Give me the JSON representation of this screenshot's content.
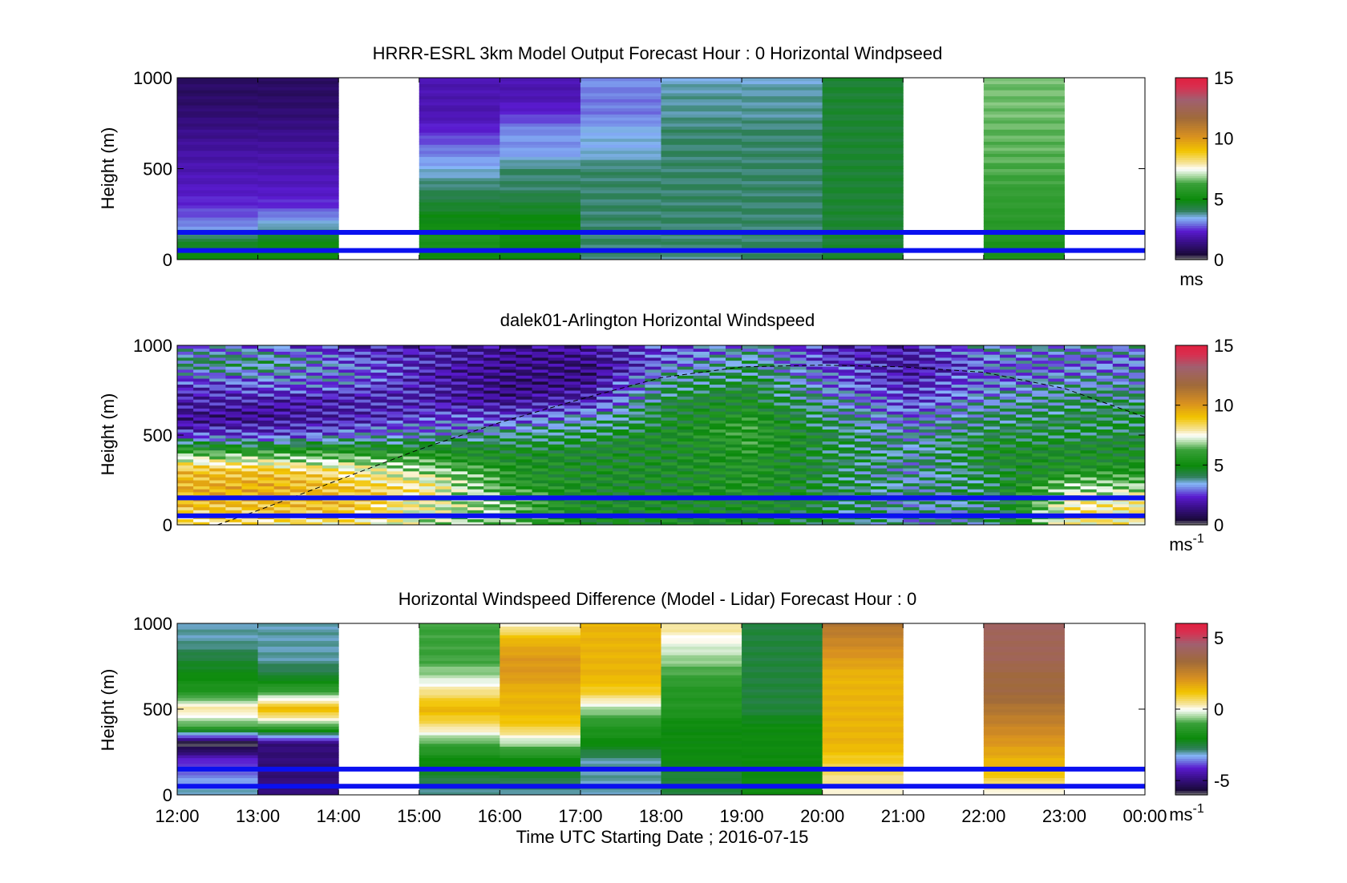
{
  "figure": {
    "xlabel": "Time UTC  Starting Date ; 2016-07-15",
    "x_ticks": [
      "12:00",
      "13:00",
      "14:00",
      "15:00",
      "16:00",
      "17:00",
      "18:00",
      "19:00",
      "20:00",
      "21:00",
      "22:00",
      "23:00",
      "00:00"
    ]
  },
  "chart_data": [
    {
      "type": "heatmap",
      "title": "HRRR-ESRL 3km Model Output   Forecast Hour : 0 Horizontal Windpseed",
      "ylabel": "Height (m)",
      "xlim": [
        12,
        24
      ],
      "ylim": [
        0,
        1000
      ],
      "y_ticks": [
        "0",
        "500",
        "1000"
      ],
      "colorbar": {
        "range": [
          0,
          15
        ],
        "ticks": [
          "0",
          "5",
          "10",
          "15"
        ],
        "unit_label": "ms",
        "unit_sup": ""
      },
      "reference_lines_height_m": [
        50,
        150
      ],
      "heights_m": [
        0,
        100,
        200,
        300,
        400,
        500,
        600,
        700,
        800,
        900,
        1000
      ],
      "columns": [
        {
          "hour": 12,
          "values": [
            5,
            4.5,
            3,
            2.5,
            2.2,
            2,
            1.8,
            1.5,
            1.2,
            1,
            1
          ]
        },
        {
          "hour": 13,
          "values": [
            5,
            5,
            3.5,
            2.5,
            2.2,
            2,
            1.8,
            1.5,
            1.2,
            1,
            1
          ]
        },
        {
          "hour": 14,
          "values": null
        },
        {
          "hour": 15,
          "values": [
            5,
            5.5,
            5,
            4.5,
            4,
            3.5,
            3,
            2.5,
            2,
            2,
            2
          ]
        },
        {
          "hour": 16,
          "values": [
            5,
            5,
            5,
            4.5,
            4,
            4,
            3.2,
            3.2,
            2.5,
            2,
            2
          ]
        },
        {
          "hour": 17,
          "values": [
            4,
            4,
            4,
            4,
            4,
            4,
            3.5,
            3.5,
            3,
            3,
            3.2
          ]
        },
        {
          "hour": 18,
          "values": [
            3.8,
            4,
            4,
            4,
            4,
            4,
            4,
            4,
            3.8,
            3.8,
            3.6
          ]
        },
        {
          "hour": 19,
          "values": [
            4,
            4,
            4,
            4,
            4,
            4,
            4,
            4,
            3.8,
            3.8,
            3.6
          ]
        },
        {
          "hour": 20,
          "values": [
            4.5,
            4.5,
            4.5,
            4.5,
            4.5,
            4.5,
            4.5,
            4.5,
            4.5,
            4.5,
            4.5
          ]
        },
        {
          "hour": 21,
          "values": null
        },
        {
          "hour": 22,
          "values": [
            5.5,
            5.5,
            5.8,
            6,
            6.2,
            6.4,
            6.5,
            6.5,
            6.6,
            6.6,
            6.6
          ]
        },
        {
          "hour": 23,
          "values": null
        }
      ]
    },
    {
      "type": "heatmap",
      "title": "dalek01-Arlington  Horizontal Windspeed",
      "ylabel": "Height (m)",
      "xlim": [
        12,
        24
      ],
      "ylim": [
        0,
        1000
      ],
      "y_ticks": [
        "0",
        "500",
        "1000"
      ],
      "colorbar": {
        "range": [
          0,
          15
        ],
        "ticks": [
          "0",
          "5",
          "10",
          "15"
        ],
        "unit_label": "ms",
        "unit_sup": "-1"
      },
      "reference_lines_height_m": [
        50,
        150
      ],
      "annotation": "dashed boundary-layer height curve",
      "bl_curve": {
        "x": [
          12.5,
          13,
          14,
          15,
          16,
          17,
          18,
          19,
          20,
          21,
          22,
          23,
          24
        ],
        "y": [
          0,
          80,
          250,
          420,
          570,
          700,
          820,
          880,
          890,
          880,
          850,
          760,
          600
        ]
      },
      "profiles": [
        {
          "hour": 12,
          "values": [
            8,
            9,
            9.5,
            9,
            6.5,
            2.5,
            1.5,
            2,
            2.5,
            4,
            3
          ]
        },
        {
          "hour": 13,
          "values": [
            8,
            9,
            9.5,
            9,
            6,
            2.5,
            1.5,
            2,
            3,
            4,
            3
          ]
        },
        {
          "hour": 14,
          "values": [
            8,
            9,
            9,
            8,
            6,
            3,
            2,
            2,
            3,
            3,
            2
          ]
        },
        {
          "hour": 15,
          "values": [
            7,
            7.5,
            8,
            7,
            5.5,
            3.5,
            2.5,
            2,
            2,
            2,
            2
          ]
        },
        {
          "hour": 16,
          "values": [
            6.5,
            6.5,
            6,
            5.5,
            5,
            4,
            2.5,
            1.5,
            1.2,
            1.5,
            1.5
          ]
        },
        {
          "hour": 17,
          "values": [
            5,
            5,
            5,
            5,
            4.8,
            4.5,
            3.5,
            2,
            1.5,
            1.2,
            2
          ]
        },
        {
          "hour": 18,
          "values": [
            5,
            5,
            5,
            5,
            5,
            5,
            4.8,
            4.5,
            4,
            3,
            2.5
          ]
        },
        {
          "hour": 19,
          "values": [
            5,
            5,
            5.5,
            5.5,
            5.5,
            6,
            5.5,
            5,
            4.5,
            4,
            3.5
          ]
        },
        {
          "hour": 20,
          "values": [
            4.5,
            4.5,
            4.5,
            4.5,
            4.5,
            4.5,
            4,
            3.5,
            3,
            2.5,
            2
          ]
        },
        {
          "hour": 21,
          "values": [
            3.5,
            3.5,
            3.8,
            3.5,
            3.8,
            3.5,
            3,
            2.5,
            2,
            1.8,
            2
          ]
        },
        {
          "hour": 22,
          "values": [
            4,
            4,
            4.5,
            4.5,
            5,
            4.5,
            4,
            3.5,
            3,
            3,
            3.5
          ]
        },
        {
          "hour": 23,
          "values": [
            8,
            8,
            7,
            5.5,
            5,
            4.5,
            4.5,
            4,
            3.5,
            3,
            3.5
          ]
        }
      ]
    },
    {
      "type": "heatmap",
      "title": "Horizontal Windspeed Difference (Model - Lidar) Forecast Hour : 0",
      "ylabel": "Height (m)",
      "xlim": [
        12,
        24
      ],
      "ylim": [
        0,
        1000
      ],
      "y_ticks": [
        "0",
        "500",
        "1000"
      ],
      "colorbar": {
        "range": [
          -6,
          6
        ],
        "ticks": [
          "-5",
          "0",
          "5"
        ],
        "unit_label": "ms",
        "unit_sup": "-1"
      },
      "reference_lines_height_m": [
        50,
        150
      ],
      "heights_m": [
        0,
        100,
        200,
        300,
        400,
        500,
        600,
        700,
        800,
        900,
        1000
      ],
      "columns": [
        {
          "hour": 12,
          "values": [
            -3,
            -3.5,
            -4,
            -6,
            -1,
            0.5,
            -1.5,
            -2,
            -2.5,
            -3,
            -3
          ]
        },
        {
          "hour": 13,
          "values": [
            -5,
            -5,
            -5,
            -5,
            -1,
            1.5,
            -1,
            -2.5,
            -3,
            -3,
            -3
          ]
        },
        {
          "hour": 14,
          "values": null
        },
        {
          "hour": 15,
          "values": [
            -3,
            -2.5,
            -2,
            -1,
            0.5,
            1.5,
            0.5,
            -0.5,
            -1,
            -1,
            -1
          ]
        },
        {
          "hour": 16,
          "values": [
            -3,
            -2.5,
            -2,
            -0.5,
            1,
            1.5,
            1.5,
            2,
            2,
            1.5,
            0
          ]
        },
        {
          "hour": 17,
          "values": [
            -3,
            -3,
            -3,
            -2,
            -1.5,
            -0.5,
            1,
            1.5,
            1.5,
            1.5,
            1.5
          ]
        },
        {
          "hour": 18,
          "values": [
            -2.5,
            -2.5,
            -2,
            -2,
            -2,
            -1.5,
            -1.5,
            -1,
            -0.5,
            0,
            0.5
          ]
        },
        {
          "hour": 19,
          "values": [
            -2,
            -2,
            -2,
            -2,
            -2,
            -2.5,
            -2.5,
            -2.5,
            -2.5,
            -2.5,
            -2.5
          ]
        },
        {
          "hour": 20,
          "values": [
            0,
            0.5,
            1,
            1.5,
            1.5,
            1.5,
            1.5,
            1.5,
            2,
            2.5,
            3
          ]
        },
        {
          "hour": 21,
          "values": null
        },
        {
          "hour": 22,
          "values": [
            0,
            1,
            1.5,
            2,
            2.5,
            3,
            3.5,
            3.5,
            4,
            4,
            4.2
          ]
        },
        {
          "hour": 23,
          "values": null
        }
      ]
    }
  ]
}
